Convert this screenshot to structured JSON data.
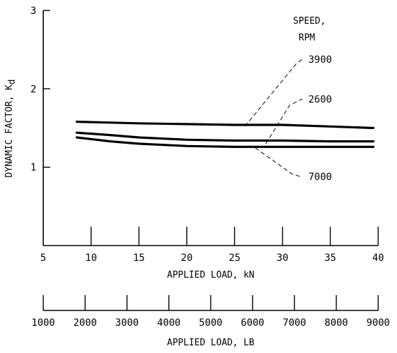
{
  "chart_data": {
    "type": "line",
    "title": "",
    "ylabel": "DYNAMIC FACTOR, K",
    "ylabel_subscript": "d",
    "ylim": [
      0,
      3
    ],
    "yticks": [
      "1",
      "2",
      "3"
    ],
    "xlabel": "APPLIED LOAD, kN",
    "xlim": [
      5,
      40
    ],
    "xticks": [
      "5",
      "10",
      "15",
      "20",
      "25",
      "30",
      "35",
      "40"
    ],
    "x2label": "APPLIED LOAD, LB",
    "x2lim": [
      1000,
      9000
    ],
    "x2ticks": [
      "1000",
      "2000",
      "3000",
      "4000",
      "5000",
      "6000",
      "7000",
      "8000",
      "9000"
    ],
    "legend_title": [
      "SPEED,",
      "RPM"
    ],
    "grid": false,
    "series": [
      {
        "name": "3900",
        "x": [
          8.5,
          15,
          20,
          25,
          30,
          35,
          39.5
        ],
        "y": [
          1.58,
          1.56,
          1.55,
          1.54,
          1.54,
          1.52,
          1.5
        ]
      },
      {
        "name": "2600",
        "x": [
          8.5,
          12,
          15,
          20,
          25,
          30,
          35,
          39.5
        ],
        "y": [
          1.44,
          1.41,
          1.38,
          1.35,
          1.34,
          1.34,
          1.33,
          1.33
        ]
      },
      {
        "name": "7000",
        "x": [
          8.5,
          12,
          15,
          20,
          25,
          30,
          35,
          39.5
        ],
        "y": [
          1.38,
          1.33,
          1.3,
          1.27,
          1.26,
          1.26,
          1.26,
          1.26
        ]
      }
    ]
  }
}
